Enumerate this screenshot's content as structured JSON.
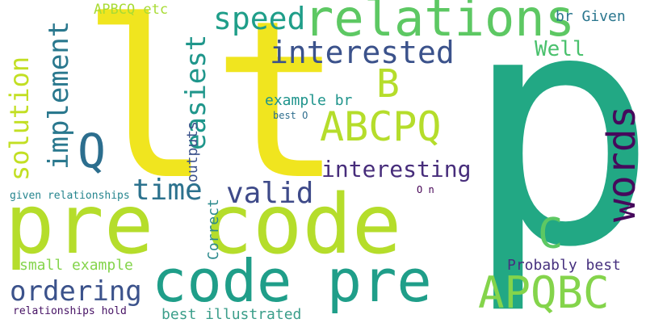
{
  "words": [
    {
      "text": "p",
      "color": "#22a884"
    },
    {
      "text": "lt",
      "color": "#f0e51f"
    },
    {
      "text": "pre code",
      "color": "#b5dd2b"
    },
    {
      "text": "relations",
      "color": "#5dc863"
    },
    {
      "text": "code pre",
      "color": "#1f9e89"
    },
    {
      "text": "APQBC",
      "color": "#84d44b"
    },
    {
      "text": "ABCPQ",
      "color": "#b5dd2b"
    },
    {
      "text": "B",
      "color": "#b5dd2b"
    },
    {
      "text": "words",
      "color": "#46095c"
    },
    {
      "text": "C",
      "color": "#5dc863"
    },
    {
      "text": "Q",
      "color": "#2c6e8e"
    },
    {
      "text": "speed",
      "color": "#1f9e89"
    },
    {
      "text": "interested",
      "color": "#3b528b"
    },
    {
      "text": "easiest",
      "color": "#1f968b"
    },
    {
      "text": "implement",
      "color": "#2a788e"
    },
    {
      "text": "solution",
      "color": "#c2df23"
    },
    {
      "text": "interesting",
      "color": "#472d7b"
    },
    {
      "text": "time",
      "color": "#2c728e"
    },
    {
      "text": "valid",
      "color": "#3e4a89"
    },
    {
      "text": "ordering",
      "color": "#3b528b"
    },
    {
      "text": "Well",
      "color": "#4ac16d"
    },
    {
      "text": "br Given",
      "color": "#2a768e"
    },
    {
      "text": "APBCQ etc",
      "color": "#a8db34"
    },
    {
      "text": "example br",
      "color": "#1f948c"
    },
    {
      "text": "outputs",
      "color": "#3b528b"
    },
    {
      "text": "best O",
      "color": "#2e6e8e"
    },
    {
      "text": "O n",
      "color": "#440154"
    },
    {
      "text": "Correct",
      "color": "#2c8a8d"
    },
    {
      "text": "given relationships",
      "color": "#25858e"
    },
    {
      "text": "small example",
      "color": "#84d44b"
    },
    {
      "text": "Probably best",
      "color": "#46307e"
    },
    {
      "text": "relationships hold",
      "color": "#471365"
    },
    {
      "text": "best illustrated",
      "color": "#3b9e8a"
    }
  ]
}
